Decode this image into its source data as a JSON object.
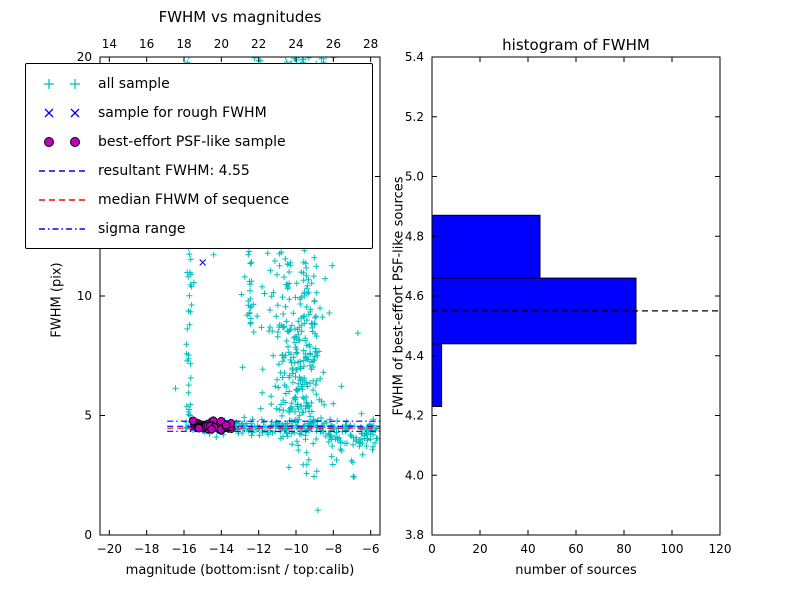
{
  "legend": {
    "items": [
      {
        "label": "all sample",
        "marker": "plus",
        "color": "#00bfbf"
      },
      {
        "label": "sample for rough FWHM",
        "marker": "x",
        "color": "#0000ff"
      },
      {
        "label": "best-effort PSF-like sample",
        "marker": "circle",
        "color": "#bf00bf"
      },
      {
        "label": "resultant FWHM: 4.55",
        "marker": "dashed",
        "color": "#0000ff"
      },
      {
        "label": "median FHWM of sequence",
        "marker": "dashed",
        "color": "#ff0000"
      },
      {
        "label": "sigma range",
        "marker": "dashdot",
        "color": "#0000ff"
      }
    ]
  },
  "chart_data": [
    {
      "type": "scatter",
      "title": "FWHM vs magnitudes",
      "xlabel": "magnitude (bottom:isnt / top:calib)",
      "ylabel": "FWHM (pix)",
      "xlim": [
        -20.5,
        -5.5
      ],
      "top_xlim": [
        13.5,
        28.5
      ],
      "ylim": [
        0,
        20
      ],
      "x_ticks": [
        {
          "v": -20,
          "label": "−20"
        },
        {
          "v": -18,
          "label": "−18"
        },
        {
          "v": -16,
          "label": "−16"
        },
        {
          "v": -14,
          "label": "−14"
        },
        {
          "v": -12,
          "label": "−12"
        },
        {
          "v": -10,
          "label": "−10"
        },
        {
          "v": -8,
          "label": "−8"
        },
        {
          "v": -6,
          "label": "−6"
        }
      ],
      "top_x_ticks": [
        {
          "v": 14,
          "label": "14"
        },
        {
          "v": 16,
          "label": "16"
        },
        {
          "v": 18,
          "label": "18"
        },
        {
          "v": 20,
          "label": "20"
        },
        {
          "v": 22,
          "label": "22"
        },
        {
          "v": 24,
          "label": "24"
        },
        {
          "v": 26,
          "label": "26"
        },
        {
          "v": 28,
          "label": "28"
        }
      ],
      "y_ticks": [
        {
          "v": 0,
          "label": "0"
        },
        {
          "v": 5,
          "label": "5"
        },
        {
          "v": 10,
          "label": "10"
        },
        {
          "v": 15,
          "label": "15"
        },
        {
          "v": 20,
          "label": "20"
        }
      ],
      "series": [
        {
          "name": "all sample",
          "marker": "plus",
          "color": "#00bfbf",
          "seed": 101,
          "clusters": [
            {
              "n": 230,
              "x": {
                "u": [
                  -16.05,
                  -5.6
                ]
              },
              "y": {
                "g": [
                  4.52,
                  0.17
                ]
              }
            },
            {
              "n": 45,
              "x": {
                "u": [
                  -8.3,
                  -5.6
                ]
              },
              "y": {
                "g": [
                  3.95,
                  0.25
                ]
              }
            },
            {
              "n": 65,
              "x": {
                "g": [
                  -15.72,
                  0.09
                ]
              },
              "y": {
                "u": [
                  4.6,
                  20.3
                ]
              }
            },
            {
              "n": 28,
              "x": {
                "g": [
                  -12.45,
                  0.13
                ]
              },
              "y": {
                "u": [
                  8.8,
                  12.9
                ]
              }
            },
            {
              "n": 300,
              "x": {
                "g": [
                  -9.95,
                  0.85
                ]
              },
              "y": {
                "u": [
                  3.9,
                  20.4
                ]
              }
            },
            {
              "n": 150,
              "x": {
                "g": [
                  -9.7,
                  0.6
                ]
              },
              "y": {
                "g": [
                  6.8,
                  1.9
                ]
              }
            },
            {
              "n": 70,
              "x": {
                "g": [
                  -10.3,
                  1.15
                ]
              },
              "y": {
                "u": [
                  18.4,
                  20.4
                ]
              }
            },
            {
              "n": 26,
              "x": {
                "u": [
                  -16.5,
                  -6.0
                ]
              },
              "y": {
                "u": [
                  3.0,
                  19.5
                ]
              }
            },
            {
              "n": 8,
              "x": {
                "u": [
                  -9.0,
                  -6.2
                ]
              },
              "y": {
                "u": [
                  2.4,
                  3.6
                ]
              }
            }
          ]
        },
        {
          "name": "sample for rough FWHM",
          "marker": "x",
          "color": "#0000ff",
          "seed": 202,
          "clusters": [
            {
              "n": 22,
              "x": {
                "u": [
                  -15.75,
                  -13.5
                ]
              },
              "y": {
                "g": [
                  4.55,
                  0.1
                ]
              }
            }
          ],
          "points": [
            [
              -15.0,
              11.4
            ]
          ]
        },
        {
          "name": "best-effort PSF-like sample",
          "marker": "circle",
          "color": "#bf00bf",
          "edge": "#000000",
          "seed": 303,
          "clusters": [
            {
              "n": 42,
              "x": {
                "u": [
                  -15.8,
                  -13.45
                ]
              },
              "y": {
                "g": [
                  4.56,
                  0.1
                ]
              }
            }
          ]
        }
      ],
      "hlines": [
        {
          "name": "resultant FWHM: 4.55",
          "y": 4.55,
          "x": [
            -16.9,
            -5.5
          ],
          "style": "dashed",
          "color": "#0000ff"
        },
        {
          "name": "median FHWM of sequence",
          "y": 4.47,
          "x": [
            -16.9,
            -5.5
          ],
          "style": "dashed",
          "color": "#ff0000"
        },
        {
          "name": "sigma range upper",
          "y": 4.76,
          "x": [
            -16.9,
            -5.5
          ],
          "style": "dashdot",
          "color": "#0000ff"
        },
        {
          "name": "sigma range lower",
          "y": 4.34,
          "x": [
            -16.9,
            -5.5
          ],
          "style": "dashdot",
          "color": "#0000ff"
        }
      ]
    },
    {
      "type": "bar",
      "orientation": "horizontal",
      "title": "histogram of FWHM",
      "xlabel": "number of sources",
      "ylabel": "FWHM of best-effort PSF-like sources",
      "xlim": [
        0,
        120
      ],
      "ylim": [
        3.8,
        5.4
      ],
      "x_ticks": [
        {
          "v": 0,
          "label": "0"
        },
        {
          "v": 20,
          "label": "20"
        },
        {
          "v": 40,
          "label": "40"
        },
        {
          "v": 60,
          "label": "60"
        },
        {
          "v": 80,
          "label": "80"
        },
        {
          "v": 100,
          "label": "100"
        },
        {
          "v": 120,
          "label": "120"
        }
      ],
      "y_ticks": [
        {
          "v": 3.8,
          "label": "3.8"
        },
        {
          "v": 4.0,
          "label": "4.0"
        },
        {
          "v": 4.2,
          "label": "4.2"
        },
        {
          "v": 4.4,
          "label": "4.4"
        },
        {
          "v": 4.6,
          "label": "4.6"
        },
        {
          "v": 4.8,
          "label": "4.8"
        },
        {
          "v": 5.0,
          "label": "5.0"
        },
        {
          "v": 5.2,
          "label": "5.2"
        },
        {
          "v": 5.4,
          "label": "5.4"
        }
      ],
      "bar_color": "#0000ff",
      "bar_edge": "#000000",
      "bins": [
        {
          "from": 4.23,
          "to": 4.44,
          "count": 4
        },
        {
          "from": 4.44,
          "to": 4.66,
          "count": 85
        },
        {
          "from": 4.66,
          "to": 4.87,
          "count": 45
        }
      ],
      "hline": {
        "name": "resultant FWHM",
        "y": 4.55,
        "style": "dashed",
        "color": "#000000"
      }
    }
  ]
}
